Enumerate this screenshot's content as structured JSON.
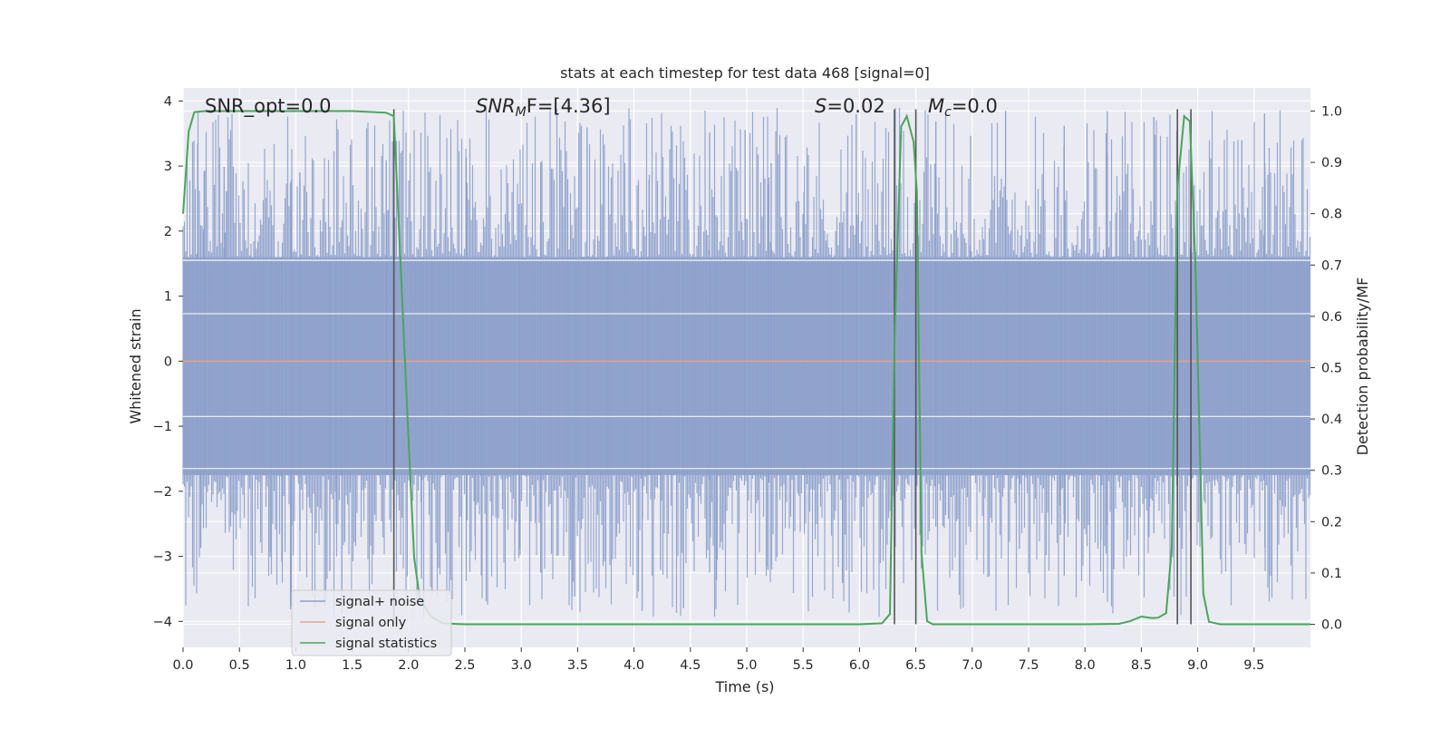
{
  "chart_data": {
    "type": "line",
    "title": "stats at each timestep for test data 468 [signal=0]",
    "xlabel": "Time (s)",
    "ylabel": "Whitened strain",
    "ylabel_right": "Detection probability/MF",
    "xlim": [
      0,
      10
    ],
    "ylim": [
      -4.4,
      4.2
    ],
    "ylim_right": [
      -0.045,
      1.045
    ],
    "x_ticks": [
      "0.0",
      "0.5",
      "1.0",
      "1.5",
      "2.0",
      "2.5",
      "3.0",
      "3.5",
      "4.0",
      "4.5",
      "5.0",
      "5.5",
      "6.0",
      "6.5",
      "7.0",
      "7.5",
      "8.0",
      "8.5",
      "9.0",
      "9.5"
    ],
    "y_ticks": [
      "4",
      "3",
      "2",
      "1",
      "0",
      "−1",
      "−2",
      "−3",
      "−4"
    ],
    "y_ticks_right": [
      "1.0",
      "0.9",
      "0.8",
      "0.7",
      "0.6",
      "0.5",
      "0.4",
      "0.3",
      "0.2",
      "0.1",
      "0.0"
    ],
    "annotations": {
      "snr_opt": "SNR_opt=0.0",
      "snr_mf_label": "SNR",
      "snr_mf_sub": "M",
      "snr_mf_value": "F=[4.36]",
      "s_label": "S",
      "s_value": "=0.02",
      "mc_label": "M",
      "mc_sub": "c",
      "mc_value": "=0.0"
    },
    "series": [
      {
        "name": "signal+ noise",
        "color": "#8da0cb",
        "style": "noise band, |amplitude| mostly < 2.5, peaks to about ±3.9"
      },
      {
        "name": "signal only",
        "color": "#e8a288",
        "values": "flat at 0.0"
      },
      {
        "name": "signal statistics",
        "color": "#4aa55a",
        "x": [
          0.0,
          0.05,
          0.1,
          0.2,
          0.5,
          1.0,
          1.5,
          1.8,
          1.87,
          1.92,
          2.0,
          2.05,
          2.1,
          2.2,
          2.3,
          2.5,
          3.0,
          4.0,
          5.0,
          6.0,
          6.2,
          6.27,
          6.31,
          6.37,
          6.42,
          6.48,
          6.51,
          6.55,
          6.6,
          6.65,
          7.0,
          8.0,
          8.3,
          8.4,
          8.5,
          8.6,
          8.65,
          8.72,
          8.77,
          8.82,
          8.88,
          8.93,
          8.98,
          9.05,
          9.1,
          9.2,
          9.5,
          10.0
        ],
        "values": [
          0.8,
          0.96,
          0.998,
          1.0,
          1.0,
          1.0,
          1.0,
          0.997,
          0.99,
          0.75,
          0.36,
          0.13,
          0.05,
          0.015,
          0.002,
          0.0,
          0.0,
          0.0,
          0.0,
          0.0,
          0.002,
          0.02,
          0.55,
          0.97,
          0.99,
          0.94,
          0.84,
          0.14,
          0.006,
          0.0,
          0.0,
          0.0,
          0.001,
          0.006,
          0.015,
          0.012,
          0.013,
          0.022,
          0.15,
          0.85,
          0.99,
          0.98,
          0.7,
          0.06,
          0.005,
          0.0,
          0.0,
          0.0
        ]
      }
    ],
    "vlines": [
      1.87,
      6.31,
      6.5,
      8.82,
      8.94
    ],
    "grid": true,
    "legend_position": "lower-left",
    "colors": {
      "background": "#eaeaf2",
      "grid": "#ffffff",
      "noise": "#8da0cb",
      "signal_only": "#e8a288",
      "statistics": "#4aa55a",
      "vline": "#555555"
    }
  }
}
